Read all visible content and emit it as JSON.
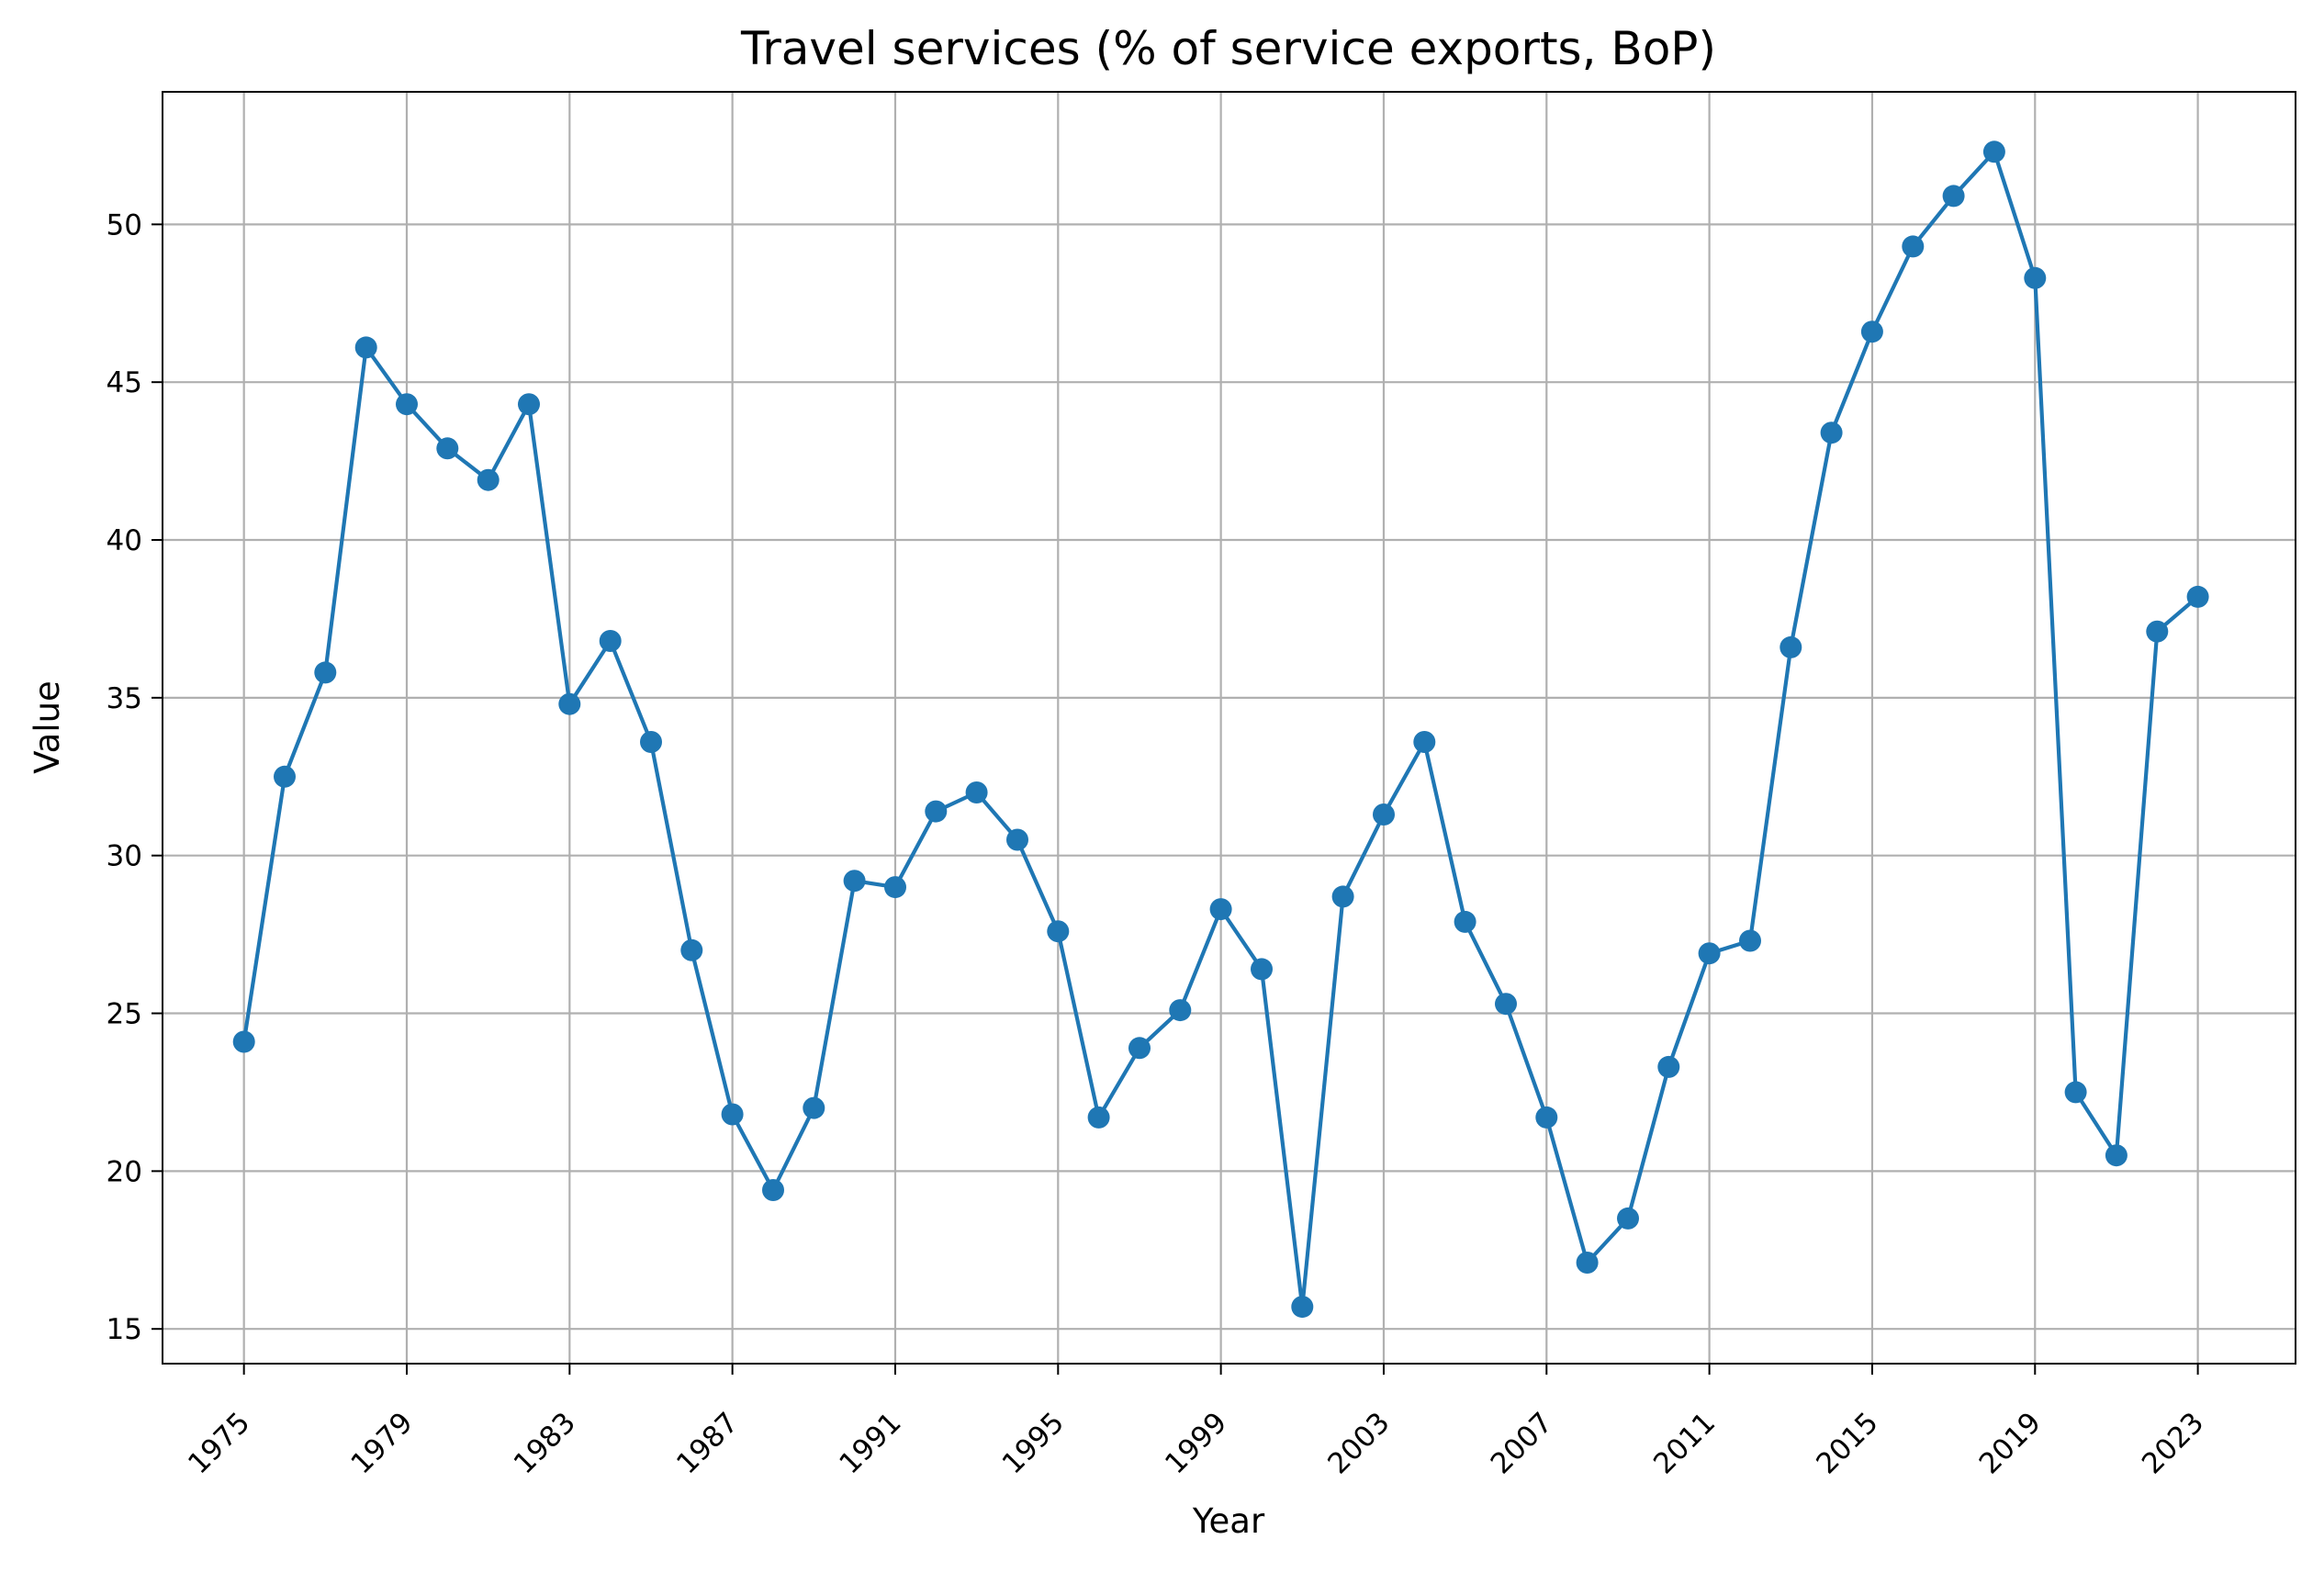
{
  "chart_data": {
    "type": "line",
    "title": "Travel services (% of service exports, BoP)",
    "xlabel": "Year",
    "ylabel": "Value",
    "xlim": [
      1973.0,
      2025.4
    ],
    "ylim": [
      13.9,
      54.2
    ],
    "xticks": [
      1975,
      1979,
      1983,
      1987,
      1991,
      1995,
      1999,
      2003,
      2007,
      2011,
      2015,
      2019,
      2023
    ],
    "yticks": [
      15,
      20,
      25,
      30,
      35,
      40,
      45,
      50
    ],
    "grid": true,
    "line_color": "#1f77b4",
    "series": [
      {
        "x": [
          1975,
          1976,
          1977,
          1978,
          1979,
          1980,
          1981,
          1982,
          1983,
          1984,
          1985,
          1986,
          1987,
          1988,
          1989,
          1990,
          1991,
          1992,
          1993,
          1994,
          1995,
          1996,
          1997,
          1998,
          1999,
          2000,
          2001,
          2002,
          2003,
          2004,
          2005,
          2006,
          2007,
          2008,
          2009,
          2010,
          2011,
          2012,
          2013,
          2014,
          2015,
          2016,
          2017,
          2018,
          2019,
          2020,
          2021,
          2022,
          2023
        ],
        "values": [
          24.1,
          32.5,
          35.8,
          46.1,
          44.3,
          42.9,
          41.9,
          44.3,
          34.8,
          36.8,
          33.6,
          27.0,
          21.8,
          19.4,
          22.0,
          29.2,
          29.0,
          31.4,
          32.0,
          30.5,
          27.6,
          21.7,
          23.9,
          25.1,
          28.3,
          26.4,
          15.7,
          28.7,
          31.3,
          33.6,
          27.9,
          25.3,
          21.7,
          17.1,
          18.5,
          23.3,
          26.9,
          27.3,
          36.6,
          43.4,
          46.6,
          49.3,
          50.9,
          52.3,
          48.3,
          22.5,
          20.5,
          37.1,
          38.2
        ]
      }
    ]
  }
}
